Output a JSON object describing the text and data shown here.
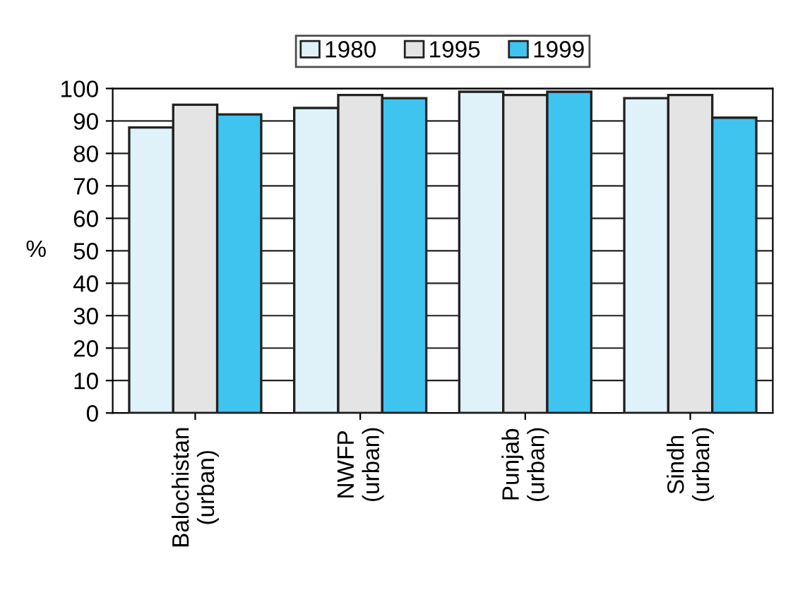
{
  "chart_data": {
    "type": "bar",
    "ylabel": "%",
    "categories": [
      "Balochistan\n(urban)",
      "NWFP\n(urban)",
      "Punjab\n(urban)",
      "Sindh\n(urban)"
    ],
    "series": [
      {
        "name": "1980",
        "color": "#dff2fa",
        "values": [
          88,
          94,
          99,
          97
        ]
      },
      {
        "name": "1995",
        "color": "#e4e4e4",
        "values": [
          95,
          98,
          98,
          98
        ]
      },
      {
        "name": "1999",
        "color": "#3fc4f0",
        "values": [
          92,
          97,
          99,
          91
        ]
      }
    ],
    "ylim": [
      0,
      100
    ],
    "yticks": [
      0,
      10,
      20,
      30,
      40,
      50,
      60,
      70,
      80,
      90,
      100
    ],
    "grid": "y",
    "legend": "top"
  }
}
